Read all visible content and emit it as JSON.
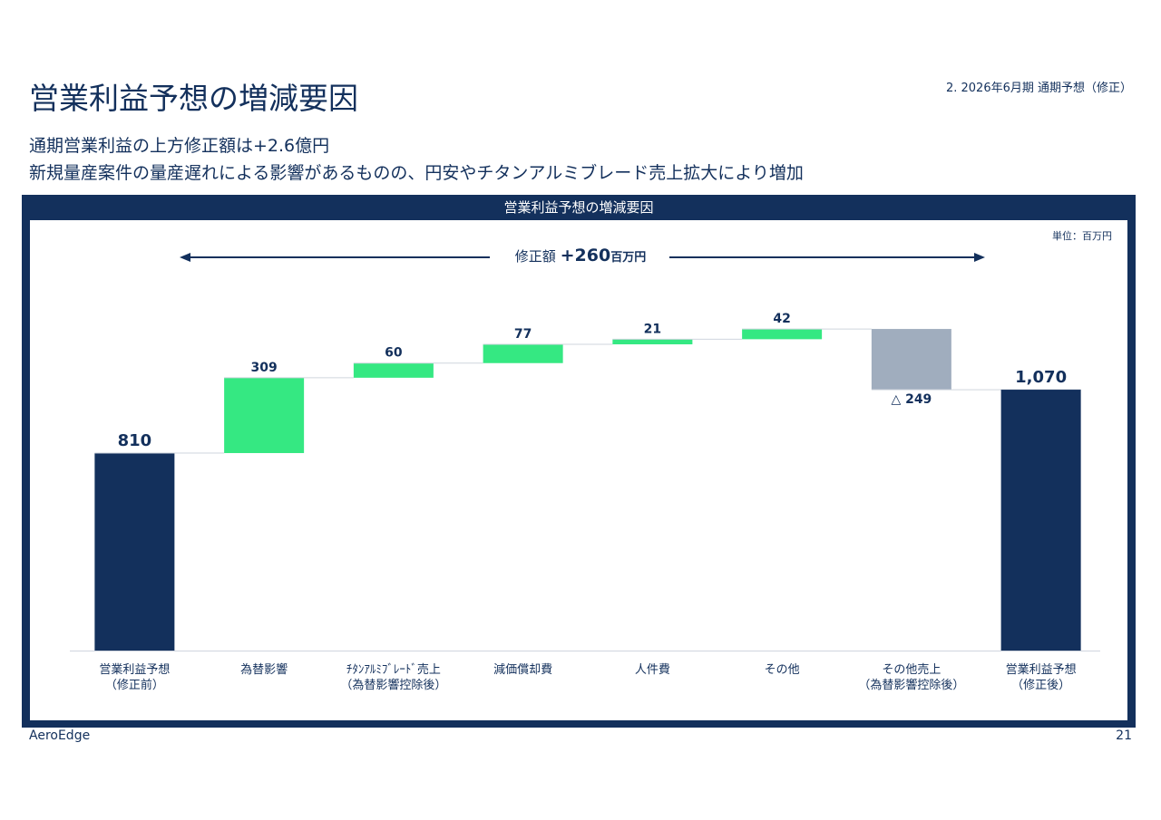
{
  "header": {
    "title": "営業利益予想の増減要因",
    "section": "2. 2026年6月期 通期予想（修正）",
    "subtitle_lines": [
      "通期営業利益の上方修正額は+2.6億円",
      "新規量産案件の量産遅れによる影響があるものの、円安やチタンアルミブレード売上拡大により増加"
    ]
  },
  "chart_data": {
    "type": "waterfall",
    "title": "営業利益予想の増減要因",
    "unit_note": "単位：百万円",
    "annotation": {
      "prefix": "修正額",
      "value_label": "+260",
      "unit": "百万円"
    },
    "categories": [
      "営業利益予想\n（修正前）",
      "為替影響",
      "ﾁﾀﾝｱﾙﾐﾌﾞﾚｰﾄﾞ売上\n（為替影響控除後）",
      "減価償却費",
      "人件費",
      "その他",
      "その他売上\n（為替影響控除後）",
      "営業利益予想\n（修正後）"
    ],
    "values": [
      810,
      309,
      60,
      77,
      21,
      42,
      -249,
      1070
    ],
    "value_labels": [
      "810",
      "309",
      "60",
      "77",
      "21",
      "42",
      "△ 249",
      "1,070"
    ],
    "bar_types": [
      "total",
      "delta",
      "delta",
      "delta",
      "delta",
      "delta",
      "delta",
      "total"
    ],
    "colors": {
      "total": "#13305c",
      "increase": "#35e882",
      "decrease": "#a0adbe"
    },
    "ylim": [
      0,
      1100
    ]
  },
  "footer": {
    "company": "AeroEdge",
    "page": "21"
  }
}
